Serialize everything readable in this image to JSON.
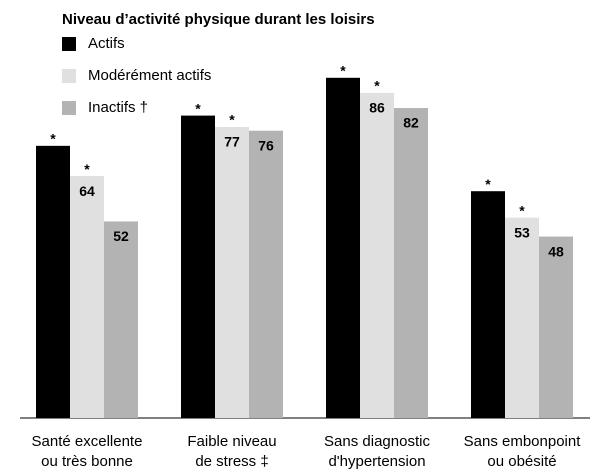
{
  "chart_data": {
    "type": "bar",
    "title": "Niveau d’activité physique durant les loisirs",
    "categories": [
      [
        "Santé excellente",
        "ou très bonne"
      ],
      [
        "Faible niveau",
        "de stress ‡"
      ],
      [
        "Sans diagnostic",
        "d'hypertension"
      ],
      [
        "Sans embonpoint",
        "ou obésité"
      ]
    ],
    "series": [
      {
        "name": "Actifs",
        "color": "#000000",
        "label_color": "#ffffff",
        "values": [
          72,
          80,
          90,
          60
        ],
        "starred": [
          true,
          true,
          true,
          true
        ]
      },
      {
        "name": "Modérément actifs",
        "color": "#e0e0e0",
        "label_color": "#000000",
        "values": [
          64,
          77,
          86,
          53
        ],
        "starred": [
          true,
          true,
          true,
          true
        ]
      },
      {
        "name": "Inactifs †",
        "color": "#b3b3b3",
        "label_color": "#000000",
        "values": [
          52,
          76,
          82,
          48
        ],
        "starred": [
          false,
          false,
          false,
          false
        ]
      }
    ],
    "marker": "*",
    "ylim": [
      0,
      100
    ]
  }
}
